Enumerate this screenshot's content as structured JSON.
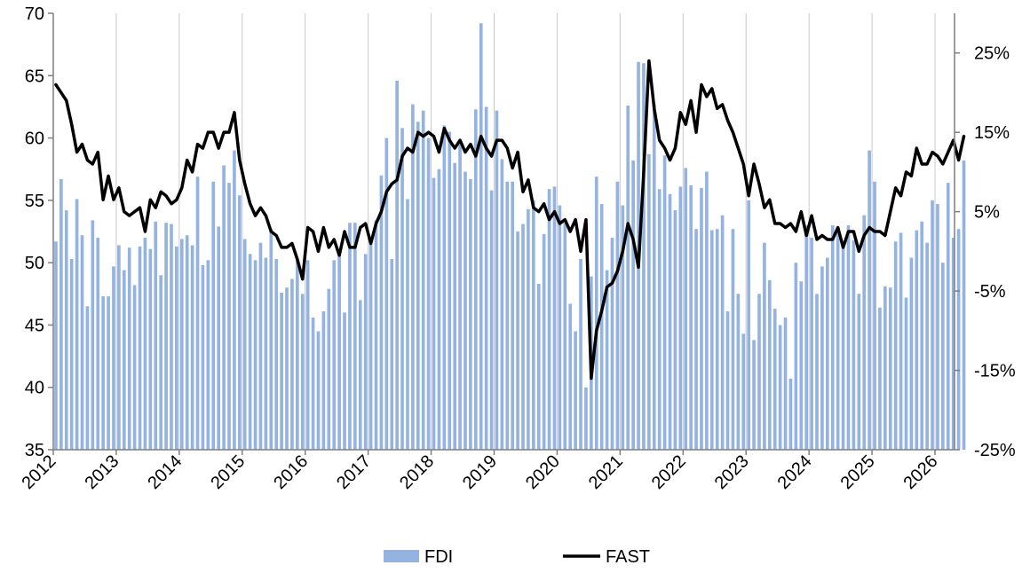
{
  "chart_data": {
    "type": "bar+line",
    "title": "",
    "x_axis": {
      "tick_labels": [
        "2012",
        "2013",
        "2014",
        "2015",
        "2016",
        "2017",
        "2018",
        "2019",
        "2020",
        "2021",
        "2022",
        "2023",
        "2024",
        "2025",
        "2026"
      ],
      "range": [
        "2012-01",
        "2026-04"
      ]
    },
    "y_left": {
      "ticks": [
        35,
        40,
        45,
        50,
        55,
        60,
        65,
        70
      ],
      "range": [
        35,
        70
      ]
    },
    "y_right": {
      "ticks": [
        "25%",
        "15%",
        "5%",
        "-5%",
        "-15%",
        "-25%"
      ],
      "tick_values": [
        25,
        15,
        5,
        -5,
        -15,
        -25
      ],
      "range": [
        -25,
        30
      ]
    },
    "grid": {
      "vertical_year_lines": true,
      "horizontal": false
    },
    "legend": {
      "position": "bottom",
      "entries": [
        "FDI",
        "FAST"
      ]
    },
    "colors": {
      "FDI": "#95b3e0",
      "FAST": "#000000",
      "grid": "#c8c8c8",
      "axis": "#7f7f7f"
    },
    "series": [
      {
        "name": "FDI",
        "type": "bar",
        "axis": "left",
        "start": "2012-01",
        "frequency": "monthly",
        "values": [
          51.7,
          56.7,
          54.2,
          50.3,
          55.1,
          52.2,
          46.5,
          53.4,
          52.0,
          47.3,
          47.3,
          49.7,
          51.4,
          49.4,
          51.2,
          48.2,
          51.3,
          52.0,
          51.1,
          53.3,
          49.0,
          53.2,
          53.1,
          51.3,
          51.9,
          52.2,
          51.4,
          56.9,
          49.8,
          50.2,
          56.5,
          52.9,
          57.8,
          56.4,
          59.0,
          55.4,
          51.9,
          50.7,
          50.2,
          51.6,
          50.4,
          52.7,
          50.3,
          47.6,
          48.0,
          48.7,
          50.2,
          47.5,
          50.2,
          45.6,
          44.5,
          46.1,
          47.9,
          50.2,
          50.6,
          46.0,
          53.2,
          53.2,
          47.0,
          50.7,
          51.6,
          53.4,
          57.0,
          60.0,
          50.3,
          64.6,
          60.8,
          55.1,
          62.7,
          61.3,
          62.2,
          60.0,
          56.8,
          57.5,
          61.0,
          60.5,
          58.0,
          59.5,
          57.3,
          56.7,
          62.3,
          69.2,
          62.5,
          55.8,
          62.2,
          58.3,
          56.5,
          56.5,
          52.5,
          53.1,
          54.3,
          55.0,
          48.3,
          52.3,
          55.9,
          56.1,
          54.6,
          53.2,
          46.7,
          44.5,
          50.3,
          40.0,
          48.9,
          56.9,
          54.7,
          49.4,
          52.0,
          56.5,
          54.6,
          62.6,
          58.2,
          66.1,
          66.0,
          58.7,
          62.7,
          55.9,
          58.6,
          55.5,
          54.2,
          56.1,
          57.6,
          56.2,
          52.7,
          56.0,
          57.3,
          52.6,
          52.7,
          53.8,
          46.1,
          52.7,
          47.5,
          44.3,
          55.0,
          43.8,
          47.5,
          51.6,
          48.6,
          46.3,
          45.0,
          45.6,
          40.7,
          50.0,
          48.5,
          53.0,
          52.0,
          47.5,
          49.7,
          50.4,
          53.0,
          52.8,
          51.3,
          53.0,
          51.8,
          47.5,
          53.8,
          59.0,
          56.5,
          46.4,
          48.1,
          48.0,
          51.7,
          52.4,
          47.2,
          50.4,
          52.6,
          53.3,
          51.6,
          55.0,
          54.7,
          50.0,
          56.4,
          52.0,
          52.7,
          58.2
        ]
      },
      {
        "name": "FAST",
        "type": "line",
        "axis": "right",
        "unit": "%",
        "start": "2012-01",
        "frequency": "monthly",
        "values": [
          21,
          20,
          19,
          16,
          12.5,
          13.5,
          11.5,
          11,
          12.5,
          6.5,
          9.5,
          6.5,
          8,
          5,
          4.5,
          5,
          5.5,
          2.5,
          6.5,
          5.5,
          7.5,
          7,
          6,
          6.5,
          8,
          11.5,
          10,
          13.5,
          13,
          15,
          15,
          13,
          15,
          15,
          17.5,
          11.5,
          8.5,
          6,
          4.5,
          5.5,
          4.5,
          2.5,
          2,
          0.5,
          0.5,
          1,
          -1,
          -3.5,
          3,
          2.5,
          0,
          3,
          0.5,
          1.5,
          -0.5,
          2.5,
          0.5,
          0.5,
          3,
          3.5,
          1,
          3.5,
          5,
          7.5,
          8.5,
          9,
          12,
          13,
          12.5,
          15,
          14.5,
          15,
          14.5,
          12.5,
          15.5,
          14,
          13,
          14,
          12.5,
          13.5,
          12,
          14.5,
          13,
          12,
          14,
          14,
          13,
          10.5,
          12.5,
          7.5,
          9,
          5.5,
          5,
          6,
          4,
          5,
          3.5,
          4,
          2.5,
          4,
          0,
          4,
          -16,
          -10,
          -7.5,
          -4.5,
          -4,
          -2.5,
          0,
          3.5,
          1.5,
          -2,
          10,
          24,
          18,
          14,
          13,
          11.5,
          13,
          17.5,
          16,
          19,
          15,
          21,
          19.5,
          20.5,
          18,
          18.5,
          16.5,
          15,
          13,
          11,
          7,
          11,
          8.5,
          5.5,
          6.5,
          3.5,
          3.5,
          3,
          3.5,
          2.5,
          5,
          2,
          4.5,
          1.5,
          2,
          1.5,
          1.5,
          3,
          0.5,
          2.5,
          2.5,
          0,
          2,
          3,
          2.5,
          2.5,
          2,
          5,
          8,
          7,
          10,
          9.5,
          13,
          11,
          11,
          12.5,
          12,
          11,
          12.5,
          14,
          11.5,
          14.5
        ]
      }
    ]
  }
}
